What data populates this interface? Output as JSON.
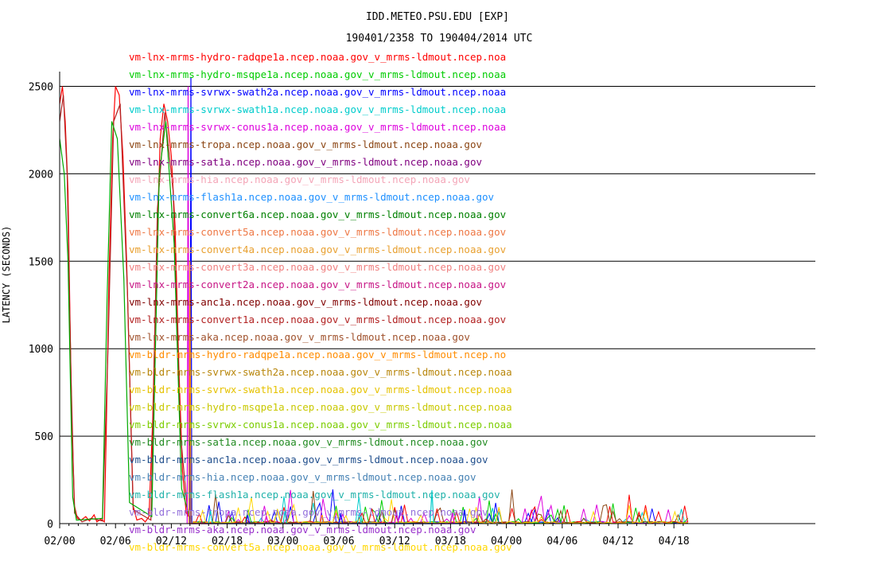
{
  "chart_data": {
    "type": "line",
    "title": "IDD.METEO.PSU.EDU [EXP]",
    "subtitle": "190401/2358 TO 190404/2014 UTC",
    "ylabel": "LATENCY (SECONDS)",
    "xlabel": "",
    "ylim": [
      0,
      2600
    ],
    "xlim": [
      0,
      44.27
    ],
    "grid": true,
    "legend_position": "overlay-top-left",
    "y_ticks": [
      0,
      500,
      1000,
      1500,
      2000,
      2500
    ],
    "x_tick_labels": [
      "02/00",
      "02/06",
      "02/12",
      "02/18",
      "03/00",
      "03/06",
      "03/12",
      "03/18",
      "04/00",
      "04/06",
      "04/12",
      "04/18"
    ],
    "x_tick_hours": [
      0,
      6,
      12,
      18,
      24,
      30,
      36,
      42,
      48,
      54,
      60,
      66
    ],
    "series": [
      {
        "name": "vm-lnx-mrms-hydro-radqpe1a.ncep.noaa.gov_v_mrms-ldmout.ncep.noa",
        "color": "#ff0000"
      },
      {
        "name": "vm-lnx-mrms-hydro-msqpe1a.ncep.noaa.gov_v_mrms-ldmout.ncep.noaa",
        "color": "#00cc00"
      },
      {
        "name": "vm-lnx-mrms-svrwx-swath2a.ncep.noaa.gov_v_mrms-ldmout.ncep.noaa",
        "color": "#0000ff"
      },
      {
        "name": "vm-lnx-mrms-svrwx-swath1a.ncep.noaa.gov_v_mrms-ldmout.ncep.noaa",
        "color": "#00cccc"
      },
      {
        "name": "vm-lnx-mrms-svrwx-conus1a.ncep.noaa.gov_v_mrms-ldmout.ncep.noaa",
        "color": "#dd00dd"
      },
      {
        "name": "vm-lnx-mrms-tropa.ncep.noaa.gov_v_mrms-ldmout.ncep.noaa.gov",
        "color": "#8b4513"
      },
      {
        "name": "vm-lnx-mrms-sat1a.ncep.noaa.gov_v_mrms-ldmout.ncep.noaa.gov",
        "color": "#800080"
      },
      {
        "name": "vm-lnx-mrms-hia.ncep.noaa.gov_v_mrms-ldmout.ncep.noaa.gov",
        "color": "#f4a6b8"
      },
      {
        "name": "vm-lnx-mrms-flash1a.ncep.noaa.gov_v_mrms-ldmout.ncep.noaa.gov",
        "color": "#1e90ff"
      },
      {
        "name": "vm-lnx-mrms-convert6a.ncep.noaa.gov_v_mrms-ldmout.ncep.noaa.gov",
        "color": "#008000"
      },
      {
        "name": "vm-lnx-mrms-convert5a.ncep.noaa.gov_v_mrms-ldmout.ncep.noaa.gov",
        "color": "#ee7744"
      },
      {
        "name": "vm-lnx-mrms-convert4a.ncep.noaa.gov_v_mrms-ldmout.ncep.noaa.gov",
        "color": "#e8a030"
      },
      {
        "name": "vm-lnx-mrms-convert3a.ncep.noaa.gov_v_mrms-ldmout.ncep.noaa.gov",
        "color": "#f08080"
      },
      {
        "name": "vm-lnx-mrms-convert2a.ncep.noaa.gov_v_mrms-ldmout.ncep.noaa.gov",
        "color": "#c71585"
      },
      {
        "name": "vm-lnx-mrms-anc1a.ncep.noaa.gov_v_mrms-ldmout.ncep.noaa.gov",
        "color": "#800000"
      },
      {
        "name": "vm-lnx-mrms-convert1a.ncep.noaa.gov_v_mrms-ldmout.ncep.noaa.gov",
        "color": "#b22222"
      },
      {
        "name": "vm-lnx-mrms-aka.ncep.noaa.gov_v_mrms-ldmout.ncep.noaa.gov",
        "color": "#a0522d"
      },
      {
        "name": "vm-bldr-mrms-hydro-radqpe1a.ncep.noaa.gov_v_mrms-ldmout.ncep.no",
        "color": "#ff8c00"
      },
      {
        "name": "vm-bldr-mrms-svrwx-swath2a.ncep.noaa.gov_v_mrms-ldmout.ncep.noaa",
        "color": "#b8860b"
      },
      {
        "name": "vm-bldr-mrms-svrwx-swath1a.ncep.noaa.gov_v_mrms-ldmout.ncep.noaa",
        "color": "#e6c200"
      },
      {
        "name": "vm-bldr-mrms-hydro-msqpe1a.ncep.noaa.gov_v_mrms-ldmout.ncep.noaa",
        "color": "#c8c800"
      },
      {
        "name": "vm-bldr-mrms-svrwx-conus1a.ncep.noaa.gov_v_mrms-ldmout.ncep.noaa",
        "color": "#7ccd00"
      },
      {
        "name": "vm-bldr-mrms-sat1a.ncep.noaa.gov_v_mrms-ldmout.ncep.noaa.gov",
        "color": "#228b22"
      },
      {
        "name": "vm-bldr-mrms-anc1a.ncep.noaa.gov_v_mrms-ldmout.ncep.noaa.gov",
        "color": "#1f4e8c"
      },
      {
        "name": "vm-bldr-mrms-hia.ncep.noaa.gov_v_mrms-ldmout.ncep.noaa.gov",
        "color": "#4682b4"
      },
      {
        "name": "vm-bldr-mrms-flash1a.ncep.noaa.gov_v_mrms-ldmout.ncep.noaa.gov",
        "color": "#20b2aa"
      },
      {
        "name": "vm-bldr-mrms-tropa.ncep.noaa.gov_v_mrms-ldmout.ncep.noaa.gov",
        "color": "#9370db"
      },
      {
        "name": "vm-bldr-mrms-aka.ncep.noaa.gov_v_mrms-ldmout.ncep.noaa.gov",
        "color": "#9932cc"
      },
      {
        "name": "vm-bldr-mrms-convert5a.ncep.noaa.gov_v_mrms-ldmout.ncep.noaa.gov",
        "color": "#ffd700"
      }
    ],
    "traces": [
      {
        "color": "#ff0000",
        "points": [
          [
            0,
            2400
          ],
          [
            0.3,
            2500
          ],
          [
            0.6,
            2300
          ],
          [
            0.9,
            1900
          ],
          [
            1.1,
            1200
          ],
          [
            1.3,
            600
          ],
          [
            1.6,
            100
          ],
          [
            1.9,
            30
          ],
          [
            2.3,
            20
          ],
          [
            2.8,
            40
          ],
          [
            3.2,
            15
          ],
          [
            3.7,
            50
          ],
          [
            4.0,
            10
          ],
          [
            4.4,
            25
          ],
          [
            4.8,
            10
          ],
          [
            5.0,
            500
          ],
          [
            5.3,
            1400
          ],
          [
            5.7,
            2200
          ],
          [
            6.0,
            2500
          ],
          [
            6.4,
            2450
          ],
          [
            6.8,
            2100
          ],
          [
            7.2,
            1500
          ],
          [
            7.6,
            700
          ],
          [
            7.9,
            100
          ],
          [
            8.3,
            20
          ],
          [
            8.8,
            30
          ],
          [
            9.2,
            10
          ],
          [
            9.6,
            40
          ],
          [
            10.0,
            600
          ],
          [
            10.4,
            1500
          ],
          [
            10.8,
            2200
          ],
          [
            11.2,
            2400
          ],
          [
            11.6,
            2300
          ],
          [
            12.0,
            2100
          ],
          [
            12.4,
            1700
          ],
          [
            12.8,
            900
          ],
          [
            13.2,
            300
          ],
          [
            13.6,
            60
          ],
          [
            14.2,
            20
          ]
        ]
      },
      {
        "color": "#b22222",
        "points": [
          [
            0,
            2300
          ],
          [
            0.4,
            2450
          ],
          [
            0.8,
            2000
          ],
          [
            1.2,
            900
          ],
          [
            1.6,
            60
          ],
          [
            2.4,
            10
          ],
          [
            3.4,
            30
          ],
          [
            4.6,
            15
          ],
          [
            5.2,
            1000
          ],
          [
            5.8,
            2300
          ],
          [
            6.5,
            2400
          ],
          [
            7.3,
            1300
          ],
          [
            7.9,
            80
          ],
          [
            9.8,
            20
          ],
          [
            10.5,
            1800
          ],
          [
            11.3,
            2350
          ],
          [
            12.2,
            1900
          ],
          [
            13.0,
            500
          ],
          [
            13.8,
            40
          ]
        ]
      },
      {
        "color": "#00aa00",
        "points": [
          [
            0,
            2200
          ],
          [
            0.5,
            2000
          ],
          [
            0.9,
            1500
          ],
          [
            1.2,
            700
          ],
          [
            1.4,
            150
          ],
          [
            1.8,
            20
          ],
          [
            4.6,
            30
          ],
          [
            5.1,
            1300
          ],
          [
            5.6,
            2300
          ],
          [
            6.2,
            2200
          ],
          [
            6.9,
            1400
          ],
          [
            7.5,
            120
          ],
          [
            9.9,
            40
          ],
          [
            10.7,
            2000
          ],
          [
            11.4,
            2300
          ],
          [
            12.3,
            1600
          ],
          [
            13.1,
            200
          ],
          [
            14.0,
            30
          ]
        ]
      },
      {
        "color": "#0000ff",
        "points": [
          [
            14.0,
            0
          ],
          [
            14.1,
            2550
          ],
          [
            14.2,
            0
          ],
          [
            20,
            0
          ],
          [
            20.2,
            50
          ],
          [
            20.4,
            0
          ],
          [
            30,
            0
          ],
          [
            30.2,
            60
          ],
          [
            30.4,
            0
          ],
          [
            43.3,
            0
          ],
          [
            43.5,
            80
          ],
          [
            43.7,
            0
          ]
        ]
      },
      {
        "color": "#dd00dd",
        "points": [
          [
            13.7,
            0
          ],
          [
            13.8,
            2500
          ],
          [
            13.9,
            0
          ],
          [
            22,
            0
          ],
          [
            22.2,
            40
          ],
          [
            22.4,
            0
          ],
          [
            36,
            0
          ],
          [
            36.2,
            70
          ],
          [
            36.4,
            0
          ],
          [
            42,
            0
          ],
          [
            42.2,
            60
          ],
          [
            42.4,
            0
          ]
        ]
      },
      {
        "color": "#ff8c00",
        "points": [
          [
            13.9,
            0
          ],
          [
            14.0,
            1500
          ],
          [
            14.1,
            0
          ],
          [
            28,
            0
          ],
          [
            28.2,
            50
          ],
          [
            28.4,
            0
          ]
        ]
      },
      {
        "color": "#00cccc",
        "points": [
          [
            16,
            0
          ],
          [
            16.2,
            80
          ],
          [
            16.4,
            0
          ],
          [
            24,
            0
          ],
          [
            24.2,
            70
          ],
          [
            24.4,
            0
          ],
          [
            32,
            0
          ],
          [
            32.2,
            60
          ],
          [
            32.4,
            0
          ],
          [
            39.8,
            0
          ],
          [
            40.0,
            190
          ],
          [
            40.2,
            0
          ]
        ]
      }
    ]
  }
}
